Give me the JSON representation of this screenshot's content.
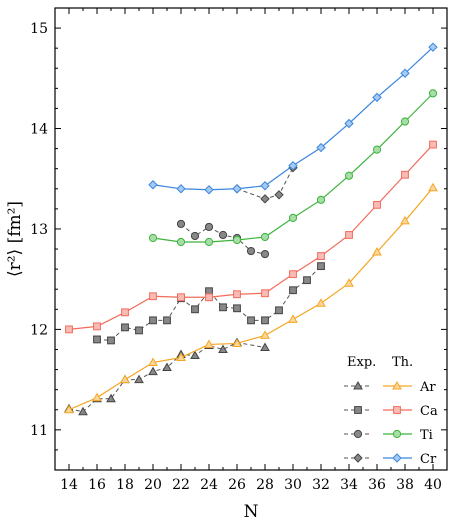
{
  "chart_data": {
    "type": "line",
    "xlabel": "N",
    "ylabel": "⟨r²⟩ [fm²]",
    "xlim": [
      13,
      41
    ],
    "ylim": [
      10.6,
      15.2
    ],
    "xticks": [
      14,
      16,
      18,
      20,
      22,
      24,
      26,
      28,
      30,
      32,
      34,
      36,
      38,
      40
    ],
    "yticks": [
      11,
      12,
      13,
      14,
      15
    ],
    "grid": false,
    "legend": {
      "placement": "bottom-right",
      "exp_header": "Exp.",
      "th_header": "Th.",
      "entries": [
        "Ar",
        "Ca",
        "Ti",
        "Cr"
      ]
    },
    "series": [
      {
        "name": "Ar",
        "color": "#f5a623",
        "marker": "triangle",
        "theory": {
          "x": [
            14,
            16,
            18,
            20,
            22,
            24,
            26,
            28,
            30,
            32,
            34,
            36,
            38,
            40
          ],
          "y": [
            11.2,
            11.32,
            11.5,
            11.67,
            11.72,
            11.85,
            11.86,
            11.94,
            12.1,
            12.26,
            12.46,
            12.77,
            13.08,
            13.41
          ]
        },
        "experiment": {
          "x": [
            14,
            15,
            16,
            17,
            18,
            19,
            20,
            21,
            22,
            23,
            24,
            25,
            26,
            28
          ],
          "y": [
            11.21,
            11.18,
            11.31,
            11.31,
            11.5,
            11.5,
            11.58,
            11.62,
            11.75,
            11.74,
            11.84,
            11.8,
            11.87,
            11.82
          ]
        }
      },
      {
        "name": "Ca",
        "color": "#f26b5b",
        "marker": "square",
        "theory": {
          "x": [
            14,
            16,
            18,
            20,
            22,
            24,
            26,
            28,
            30,
            32,
            34,
            36,
            38,
            40
          ],
          "y": [
            12.0,
            12.03,
            12.17,
            12.33,
            12.32,
            12.32,
            12.35,
            12.36,
            12.55,
            12.73,
            12.94,
            13.24,
            13.54,
            13.84
          ]
        },
        "experiment": {
          "x": [
            16,
            17,
            18,
            19,
            20,
            21,
            22,
            23,
            24,
            25,
            26,
            27,
            28,
            29,
            30,
            31,
            32
          ],
          "y": [
            11.9,
            11.89,
            12.02,
            11.99,
            12.09,
            12.09,
            12.31,
            12.2,
            12.38,
            12.22,
            12.21,
            12.09,
            12.09,
            12.19,
            12.39,
            12.49,
            12.63
          ]
        }
      },
      {
        "name": "Ti",
        "color": "#3cb43c",
        "marker": "circle",
        "theory": {
          "x": [
            20,
            22,
            24,
            26,
            28,
            30,
            32,
            34,
            36,
            38,
            40
          ],
          "y": [
            12.91,
            12.87,
            12.87,
            12.89,
            12.92,
            13.11,
            13.29,
            13.53,
            13.79,
            14.07,
            14.35
          ]
        },
        "experiment": {
          "x": [
            22,
            23,
            24,
            25,
            26,
            27,
            28
          ],
          "y": [
            13.05,
            12.93,
            13.02,
            12.94,
            12.91,
            12.78,
            12.75
          ]
        }
      },
      {
        "name": "Cr",
        "color": "#3a87e0",
        "marker": "diamond",
        "theory": {
          "x": [
            20,
            22,
            24,
            26,
            28,
            30,
            32,
            34,
            36,
            38,
            40
          ],
          "y": [
            13.44,
            13.4,
            13.39,
            13.4,
            13.43,
            13.63,
            13.81,
            14.05,
            14.31,
            14.55,
            14.81
          ]
        },
        "experiment": {
          "x": [
            26,
            28,
            29,
            30
          ],
          "y": [
            13.4,
            13.3,
            13.34,
            13.61
          ]
        }
      }
    ]
  }
}
